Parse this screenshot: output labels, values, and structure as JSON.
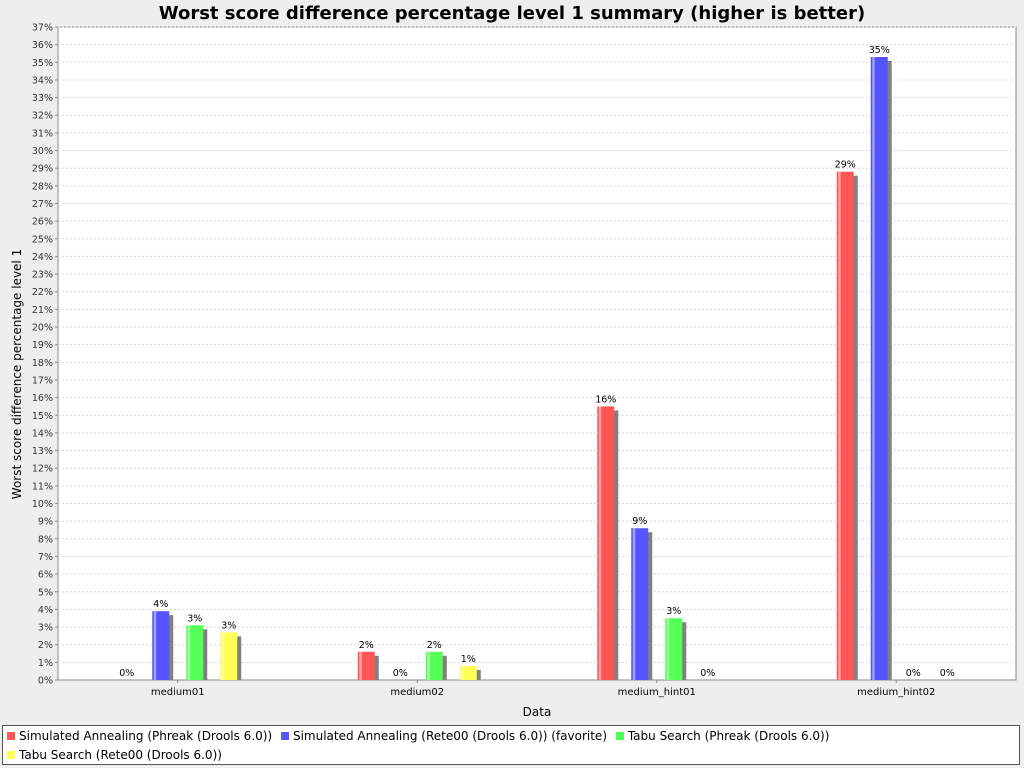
{
  "chart_data": {
    "type": "bar",
    "title": "Worst score difference percentage level 1 summary (higher is better)",
    "xlabel": "Data",
    "ylabel": "Worst score difference percentage level 1",
    "categories": [
      "medium01",
      "medium02",
      "medium_hint01",
      "medium_hint02"
    ],
    "ylim": [
      0,
      37
    ],
    "ytick_step": 1,
    "tick_suffix": "%",
    "grid": true,
    "legend_position": "bottom",
    "series": [
      {
        "name": "Simulated Annealing (Phreak (Drools 6.0))",
        "color": "#ff5555",
        "values": [
          0,
          1.6,
          15.5,
          28.8
        ],
        "labels": [
          "0%",
          "2%",
          "16%",
          "29%"
        ]
      },
      {
        "name": "Simulated Annealing (Rete00 (Drools 6.0)) (favorite)",
        "color": "#5555ff",
        "values": [
          3.9,
          0,
          8.6,
          35.3
        ],
        "labels": [
          "4%",
          "0%",
          "9%",
          "35%"
        ]
      },
      {
        "name": "Tabu Search (Phreak (Drools 6.0))",
        "color": "#55ff55",
        "values": [
          3.1,
          1.6,
          3.5,
          0
        ],
        "labels": [
          "3%",
          "2%",
          "3%",
          "0%"
        ]
      },
      {
        "name": "Tabu Search (Rete00 (Drools 6.0))",
        "color": "#ffff55",
        "values": [
          2.7,
          0.8,
          0,
          0
        ],
        "labels": [
          "3%",
          "1%",
          "0%",
          "0%"
        ]
      }
    ]
  }
}
